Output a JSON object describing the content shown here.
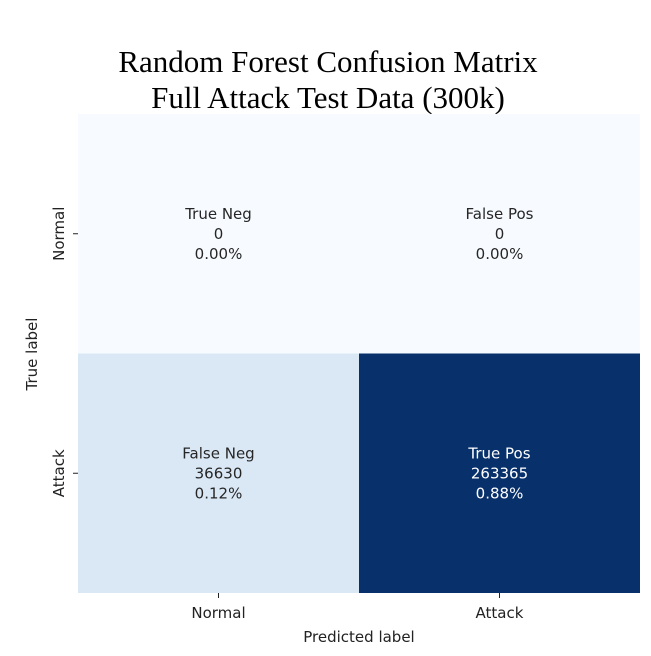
{
  "chart_data": {
    "type": "heatmap",
    "title_lines": [
      "Random Forest Confusion Matrix",
      "Full Attack Test Data (300k)"
    ],
    "xlabel": "Predicted label",
    "ylabel": "True label",
    "x_categories": [
      "Normal",
      "Attack"
    ],
    "y_categories": [
      "Normal",
      "Attack"
    ],
    "colormap": "Blues",
    "colorbar": false,
    "cells": [
      [
        {
          "label": "True Neg",
          "count": 0,
          "percent": "0.00%",
          "fill": "#f7fbff",
          "text_color": "#262626"
        },
        {
          "label": "False Pos",
          "count": 0,
          "percent": "0.00%",
          "fill": "#f7fbff",
          "text_color": "#262626"
        }
      ],
      [
        {
          "label": "False Neg",
          "count": 36630,
          "percent": "0.12%",
          "fill": "#dae8f6",
          "text_color": "#262626"
        },
        {
          "label": "True Pos",
          "count": 263365,
          "percent": "0.88%",
          "fill": "#08306b",
          "text_color": "#ffffff"
        }
      ]
    ]
  }
}
